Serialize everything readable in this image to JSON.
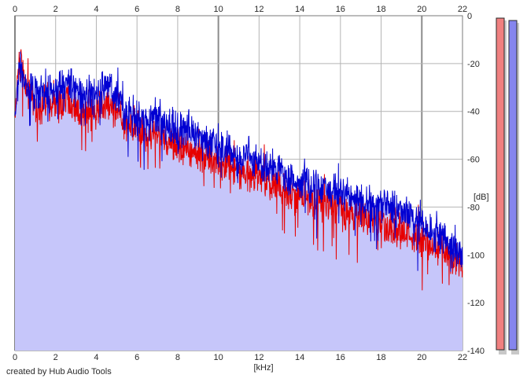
{
  "footer": {
    "credit": "created by Hub Audio Tools"
  },
  "colors": {
    "background": "#ffffff",
    "fill": "#c6c6fa",
    "grid": "#b4b4b4",
    "grid_major": "#8c8c8c",
    "series_red": "#e60000",
    "series_blue": "#0000d2",
    "level_red": "#f08080",
    "level_blue": "#8585ee"
  },
  "level_meters": [
    {
      "name": "left",
      "color": "#f08080",
      "level_db": -1
    },
    {
      "name": "right",
      "color": "#8585ee",
      "level_db": -2
    }
  ],
  "chart_data": {
    "type": "line",
    "title": "",
    "xlabel": "[kHz]",
    "ylabel": "[dB]",
    "xlim": [
      0,
      22
    ],
    "ylim": [
      -140,
      0
    ],
    "x_ticks": [
      "0",
      "2",
      "4",
      "6",
      "8",
      "10",
      "12",
      "14",
      "16",
      "18",
      "20",
      "22"
    ],
    "y_ticks": [
      "0",
      "-20",
      "-40",
      "-60",
      "-80",
      "-100",
      "-120",
      "-140"
    ],
    "grid": true,
    "fill_below": true,
    "x": [
      0,
      0.25,
      0.5,
      1,
      1.5,
      2,
      2.5,
      3,
      3.5,
      4,
      4.5,
      5,
      5.5,
      6,
      6.5,
      7,
      7.5,
      8,
      8.5,
      9,
      9.5,
      10,
      10.5,
      11,
      11.5,
      12,
      12.5,
      13,
      13.5,
      14,
      14.5,
      15,
      15.5,
      16,
      16.5,
      17,
      17.5,
      18,
      18.5,
      19,
      19.5,
      20,
      20.5,
      21,
      21.5,
      22
    ],
    "series": [
      {
        "color": "#e60000",
        "values": [
          -40,
          -14,
          -28,
          -38,
          -36,
          -37,
          -34,
          -39,
          -40,
          -39,
          -36,
          -38,
          -46,
          -44,
          -50,
          -48,
          -52,
          -54,
          -55,
          -58,
          -58,
          -60,
          -62,
          -64,
          -66,
          -66,
          -70,
          -72,
          -74,
          -76,
          -76,
          -78,
          -78,
          -80,
          -83,
          -84,
          -85,
          -86,
          -88,
          -90,
          -90,
          -93,
          -95,
          -97,
          -101,
          -104
        ]
      },
      {
        "color": "#0000d2",
        "values": [
          -40,
          -20,
          -30,
          -34,
          -31,
          -32,
          -28,
          -30,
          -33,
          -32,
          -29,
          -33,
          -40,
          -42,
          -44,
          -44,
          -46,
          -48,
          -47,
          -50,
          -52,
          -54,
          -56,
          -60,
          -58,
          -62,
          -64,
          -66,
          -67,
          -70,
          -70,
          -72,
          -72,
          -74,
          -76,
          -76,
          -78,
          -78,
          -80,
          -82,
          -82,
          -86,
          -89,
          -92,
          -96,
          -100
        ]
      }
    ]
  }
}
